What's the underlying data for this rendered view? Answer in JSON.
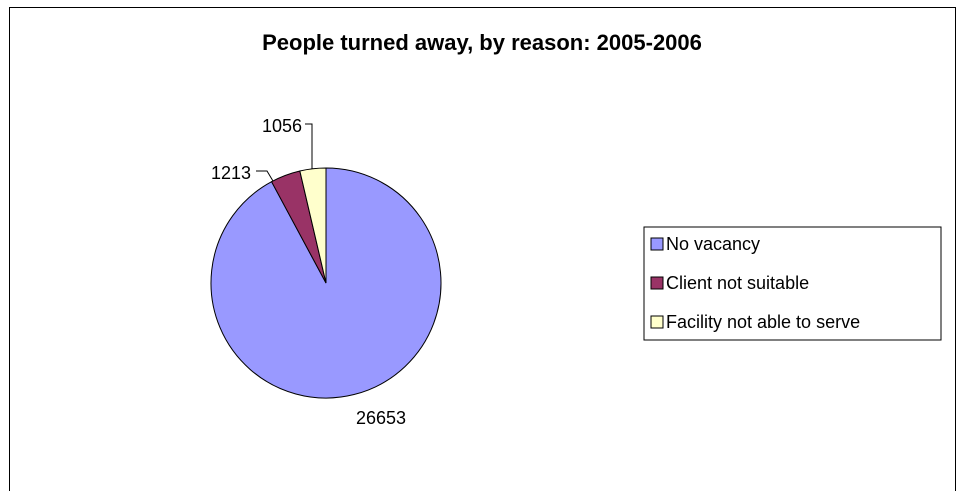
{
  "chart_data": {
    "type": "pie",
    "title": "People turned away, by reason: 2005-2006",
    "categories": [
      "No vacancy",
      "Client not suitable",
      "Facility not able to serve"
    ],
    "values": [
      26653,
      1213,
      1056
    ],
    "colors": [
      "#9999ff",
      "#993366",
      "#ffffcc"
    ],
    "data_labels": [
      "26653",
      "1213",
      "1056"
    ],
    "legend_position": "right",
    "start_angle": "12 o'clock, clockwise"
  }
}
